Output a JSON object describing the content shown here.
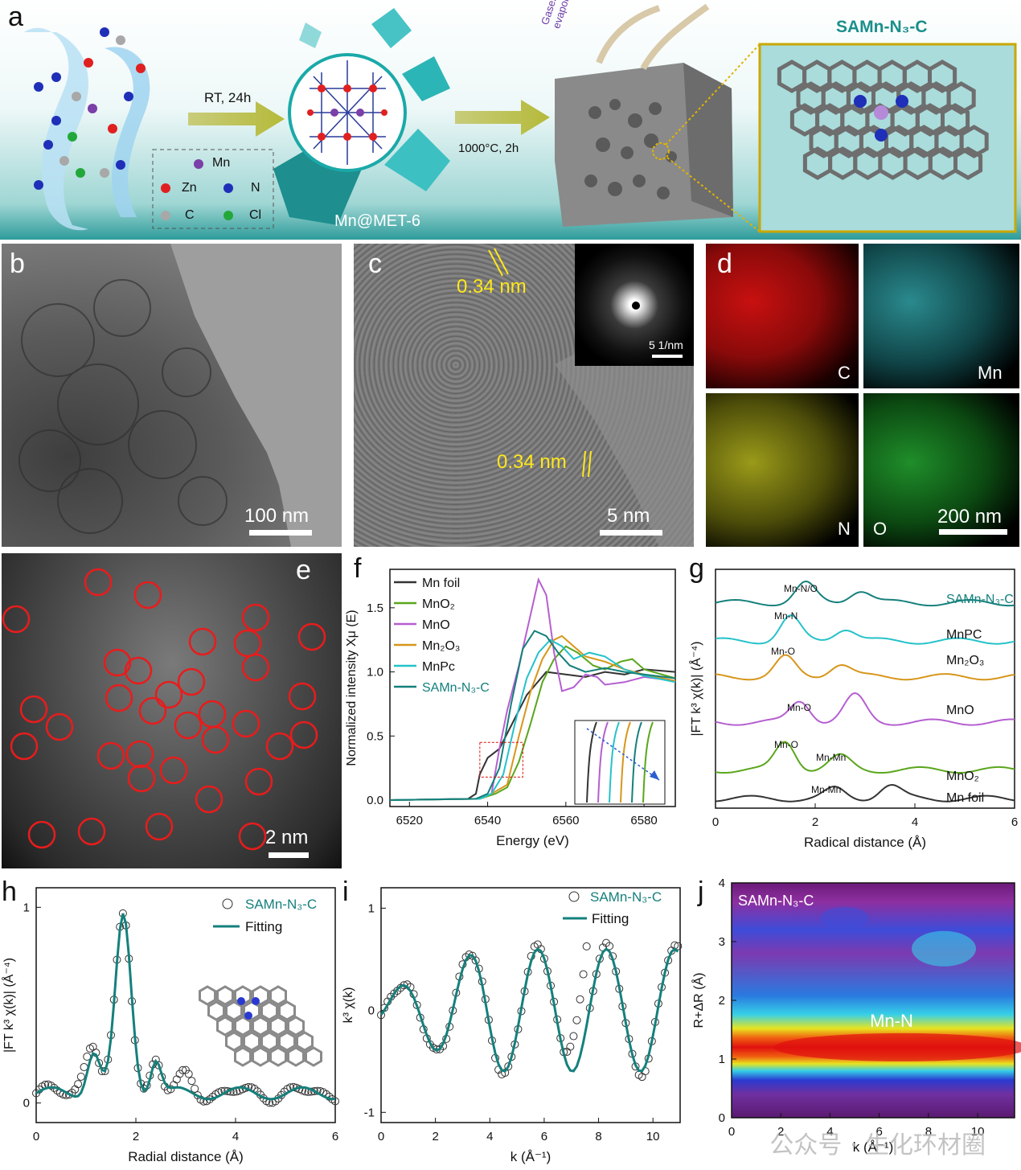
{
  "panel_a": {
    "label": "a",
    "step1": "RT, 24h",
    "step2": "1000°C, 2h",
    "mof_name": "Mn@MET-6",
    "gases_label": "Gases evaporation",
    "product_name": "SAMn-N₃-C",
    "legend": [
      {
        "symbol": "Mn",
        "color": "#7a3fa8"
      },
      {
        "symbol": "Zn",
        "color": "#e02020"
      },
      {
        "symbol": "N",
        "color": "#1f2fb8"
      },
      {
        "symbol": "C",
        "color": "#a8a8a8"
      },
      {
        "symbol": "Cl",
        "color": "#22a83a"
      }
    ]
  },
  "panel_b": {
    "label": "b",
    "scalebar": "100 nm"
  },
  "panel_c": {
    "label": "c",
    "spacing1": "0.34 nm",
    "spacing2": "0.34 nm",
    "scalebar": "5 nm",
    "inset_scalebar": "5 1/nm"
  },
  "panel_d": {
    "label": "d",
    "maps": [
      "C",
      "Mn",
      "N",
      "O"
    ],
    "scalebar": "200 nm"
  },
  "panel_e": {
    "label": "e",
    "scalebar": "2 nm"
  },
  "panel_f": {
    "label": "f"
  },
  "panel_g": {
    "label": "g"
  },
  "panel_h": {
    "label": "h"
  },
  "panel_i": {
    "label": "i"
  },
  "panel_j": {
    "label": "j"
  },
  "watermark": "公众号 · 生化环材圈",
  "chart_data": [
    {
      "id": "f",
      "type": "line",
      "xlabel": "Energy (eV)",
      "ylabel": "Normalized intensity Xμ (E)",
      "xlim": [
        6515,
        6588
      ],
      "ylim": [
        -0.05,
        1.8
      ],
      "xticks": [
        6520,
        6540,
        6560,
        6580
      ],
      "yticks": [
        "0.0",
        "0.5",
        "1.0",
        "1.5"
      ],
      "legend_position": "top-left",
      "series": [
        {
          "name": "Mn foil",
          "color": "#333333",
          "x": [
            6515,
            6535,
            6537,
            6538,
            6540,
            6543,
            6546,
            6550,
            6555,
            6560,
            6565,
            6570,
            6575,
            6580,
            6588
          ],
          "y": [
            0.0,
            0.01,
            0.05,
            0.2,
            0.33,
            0.4,
            0.58,
            0.82,
            1.0,
            0.98,
            0.96,
            1.0,
            0.98,
            1.02,
            1.0
          ]
        },
        {
          "name": "MnO₂",
          "color": "#5aa61c",
          "x": [
            6515,
            6538,
            6542,
            6545,
            6548,
            6551,
            6554,
            6557,
            6560,
            6563,
            6567,
            6570,
            6574,
            6577,
            6580,
            6588
          ],
          "y": [
            0.0,
            0.01,
            0.05,
            0.1,
            0.3,
            0.6,
            0.92,
            1.1,
            1.2,
            1.15,
            1.05,
            1.02,
            1.08,
            1.1,
            1.02,
            0.95
          ]
        },
        {
          "name": "MnO",
          "color": "#b55fd0",
          "x": [
            6515,
            6538,
            6541,
            6543,
            6545,
            6548,
            6551,
            6553,
            6555,
            6557,
            6559,
            6562,
            6565,
            6568,
            6570,
            6575,
            6580,
            6588
          ],
          "y": [
            0.0,
            0.01,
            0.05,
            0.4,
            0.7,
            1.05,
            1.45,
            1.72,
            1.6,
            1.15,
            0.85,
            0.88,
            0.98,
            0.96,
            0.9,
            0.92,
            0.96,
            0.93
          ]
        },
        {
          "name": "Mn₂O₃",
          "color": "#d7961a",
          "x": [
            6515,
            6538,
            6541,
            6545,
            6548,
            6551,
            6554,
            6557,
            6559,
            6562,
            6565,
            6570,
            6575,
            6580,
            6588
          ],
          "y": [
            0.0,
            0.01,
            0.05,
            0.12,
            0.5,
            0.85,
            1.1,
            1.25,
            1.28,
            1.2,
            1.12,
            1.08,
            1.02,
            0.98,
            0.93
          ]
        },
        {
          "name": "MnPc",
          "color": "#25c2c9",
          "x": [
            6515,
            6538,
            6541,
            6544,
            6547,
            6550,
            6553,
            6556,
            6559,
            6562,
            6566,
            6570,
            6575,
            6580,
            6588
          ],
          "y": [
            0.0,
            0.01,
            0.05,
            0.2,
            0.6,
            0.95,
            1.15,
            1.25,
            1.2,
            1.1,
            1.15,
            1.12,
            1.02,
            0.97,
            0.92
          ]
        },
        {
          "name": "SAMn-N₃-C",
          "color": "#15807c",
          "x": [
            6515,
            6537,
            6540,
            6543,
            6546,
            6549,
            6552,
            6555,
            6558,
            6561,
            6565,
            6570,
            6575,
            6580,
            6588
          ],
          "y": [
            0.0,
            0.01,
            0.05,
            0.25,
            0.75,
            1.18,
            1.32,
            1.28,
            1.15,
            1.05,
            1.0,
            1.03,
            1.0,
            0.98,
            0.95
          ]
        }
      ]
    },
    {
      "id": "g",
      "type": "line",
      "xlabel": "Radical distance (Å)",
      "ylabel": "|FT k³ χ(k)| (Å⁻⁴)",
      "xlim": [
        0,
        6
      ],
      "xticks": [
        0,
        2,
        4,
        6
      ],
      "series": [
        {
          "name": "SAMn-N₃-C",
          "color": "#15807c"
        },
        {
          "name": "MnPC",
          "color": "#25c2c9"
        },
        {
          "name": "Mn₂O₃",
          "color": "#d7961a"
        },
        {
          "name": "MnO",
          "color": "#b55fd0"
        },
        {
          "name": "MnO₂",
          "color": "#5aa61c"
        },
        {
          "name": "Mn foil",
          "color": "#333333"
        }
      ],
      "annotations": [
        "Mn-N/O",
        "Mn-N",
        "Mn-O",
        "Mn-O",
        "Mn-O",
        "Mn-Mn",
        "Mn-Mn"
      ]
    },
    {
      "id": "h",
      "type": "line",
      "xlabel": "Radial distance (Å)",
      "ylabel": "|FT k³ χ(k)| (Å⁻⁴)",
      "xlim": [
        0,
        6
      ],
      "ylim": [
        -0.1,
        1.1
      ],
      "xticks": [
        0,
        2,
        4,
        6
      ],
      "yticks": [
        0,
        1
      ],
      "series": [
        {
          "name": "SAMn-N₃-C",
          "color": "#333333",
          "marker": "open-circle"
        },
        {
          "name": "Fitting",
          "color": "#15807c"
        }
      ]
    },
    {
      "id": "i",
      "type": "line",
      "xlabel": "k (Å⁻¹)",
      "ylabel": "k³ χ(k)",
      "xlim": [
        0,
        11
      ],
      "ylim": [
        -1.1,
        1.2
      ],
      "xticks": [
        0,
        2,
        4,
        6,
        8,
        10
      ],
      "yticks": [
        -1,
        0,
        1
      ],
      "series": [
        {
          "name": "SAMn-N₃-C",
          "color": "#333333",
          "marker": "open-circle"
        },
        {
          "name": "Fitting",
          "color": "#15807c"
        }
      ]
    },
    {
      "id": "j",
      "type": "heatmap",
      "title": "SAMn-N₃-C",
      "xlabel": "k (Å⁻¹)",
      "ylabel": "R+ΔR (Å)",
      "xlim": [
        0,
        11.5
      ],
      "ylim": [
        0,
        4
      ],
      "xticks": [
        0,
        2,
        4,
        6,
        8,
        10
      ],
      "yticks": [
        0,
        1,
        2,
        3,
        4
      ],
      "annotation": "Mn-N"
    }
  ]
}
